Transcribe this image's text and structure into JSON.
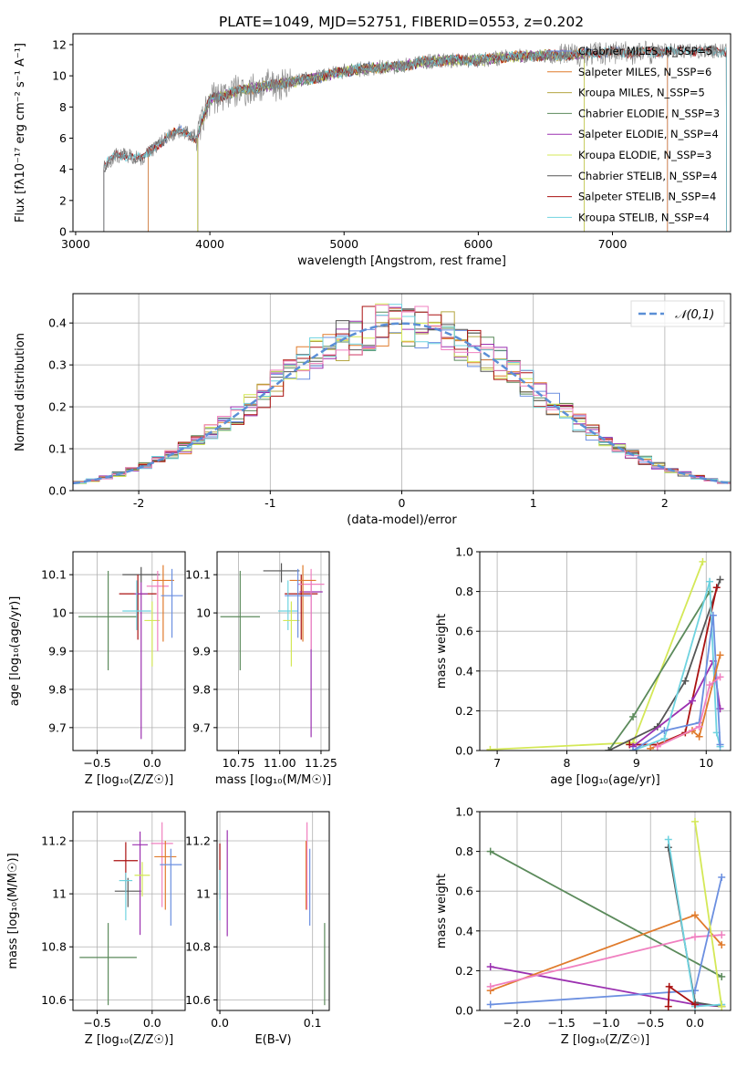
{
  "figure": {
    "title": "PLATE=1049, MJD=52751, FIBERID=0553, z=0.202"
  },
  "chart_data": [
    {
      "id": "spectrum",
      "type": "line",
      "xlabel": "wavelength [Angstrom, rest frame]",
      "ylabel": "Flux [fλ10⁻¹⁷ erg cm⁻² s⁻¹ A⁻¹]",
      "xlim": [
        2980,
        7880
      ],
      "ylim": [
        0,
        12.7
      ],
      "xticks": [
        3000,
        4000,
        5000,
        6000,
        7000
      ],
      "yticks": [
        0,
        2,
        4,
        6,
        8,
        10,
        12
      ],
      "grid": false,
      "legend_position": "top-right",
      "observed_envelope": {
        "x": [
          3210,
          3300,
          3400,
          3500,
          3600,
          3700,
          3800,
          3900,
          4000,
          4200,
          4400,
          4600,
          4800,
          5000,
          5200,
          5400,
          5600,
          5800,
          6000,
          6200,
          6400,
          6600,
          6800,
          7000,
          7200,
          7400,
          7600,
          7850
        ],
        "y": [
          4.2,
          4.9,
          4.9,
          4.7,
          5.5,
          6.2,
          6.5,
          6.0,
          8.5,
          9.0,
          9.3,
          9.6,
          9.9,
          10.3,
          10.5,
          10.6,
          10.9,
          11.0,
          11.0,
          11.2,
          11.3,
          11.3,
          11.4,
          11.5,
          11.5,
          11.6,
          11.6,
          11.6
        ]
      },
      "series": [
        {
          "name": "Chabrier MILES, N_SSP=5",
          "color": "#6b8fe0",
          "x_start": 3540,
          "x_end": 7410
        },
        {
          "name": "Salpeter MILES, N_SSP=6",
          "color": "#e07b2c",
          "x_start": 3540,
          "x_end": 7410
        },
        {
          "name": "Kroupa MILES, N_SSP=5",
          "color": "#b5a642",
          "x_start": 3910,
          "x_end": 6790
        },
        {
          "name": "Chabrier ELODIE, N_SSP=3",
          "color": "#5b8a5b",
          "x_start": 3910,
          "x_end": 6790
        },
        {
          "name": "Salpeter ELODIE, N_SSP=4",
          "color": "#9b30b0",
          "x_start": 3910,
          "x_end": 6790
        },
        {
          "name": "Kroupa ELODIE, N_SSP=3",
          "color": "#d4e857",
          "x_start": 3910,
          "x_end": 6790
        },
        {
          "name": "Chabrier STELIB, N_SSP=4",
          "color": "#555555",
          "x_start": 3210,
          "x_end": 7850
        },
        {
          "name": "Salpeter STELIB, N_SSP=4",
          "color": "#aa1111",
          "x_start": 3210,
          "x_end": 7850
        },
        {
          "name": "Kroupa STELIB, N_SSP=4",
          "color": "#6fd3e0",
          "x_start": 3210,
          "x_end": 7850
        }
      ]
    },
    {
      "id": "residuals",
      "type": "histogram",
      "xlabel": "(data-model)/error",
      "ylabel": "Normed distribution",
      "xlim": [
        -2.5,
        2.5
      ],
      "ylim": [
        0,
        0.47
      ],
      "xticks": [
        -2,
        -1,
        0,
        1,
        2
      ],
      "yticks": [
        0.0,
        0.1,
        0.2,
        0.3,
        0.4
      ],
      "grid": true,
      "legend_position": "top-right",
      "legend_label": "𝒩(0,1)",
      "normal_curve_color": "#5b8fd6",
      "bin_width": 0.1
    },
    {
      "id": "age-vs-z",
      "type": "errorbar",
      "xlabel": "Z [log₁₀(Z/Z☉)]",
      "ylabel": "age  [log₁₀(age/yr)]",
      "xlim": [
        -0.72,
        0.3
      ],
      "ylim": [
        9.64,
        10.16
      ],
      "xticks": [
        -0.5,
        0.0
      ],
      "xticklabels": [
        "−0.5",
        "0.0"
      ],
      "yticks": [
        9.7,
        9.8,
        9.9,
        10.0,
        10.1
      ],
      "grid": true,
      "points": [
        {
          "x": -0.4,
          "y": 9.99,
          "xerr": 0.27,
          "yerr_lo": 0.14,
          "yerr_hi": 0.12,
          "color": "#5b8a5b"
        },
        {
          "x": -0.1,
          "y": 10.1,
          "xerr": 0.17,
          "yerr_lo": 0.02,
          "yerr_hi": 0.02,
          "color": "#555555"
        },
        {
          "x": -0.13,
          "y": 10.05,
          "xerr": 0.17,
          "yerr_lo": 0.12,
          "yerr_hi": 0.05,
          "color": "#aa1111"
        },
        {
          "x": -0.1,
          "y": 10.05,
          "xerr": 0.06,
          "yerr_lo": 0.38,
          "yerr_hi": 0.03,
          "color": "#9b30b0"
        },
        {
          "x": -0.14,
          "y": 10.005,
          "xerr": 0.13,
          "yerr_lo": 0.05,
          "yerr_hi": 0.08,
          "color": "#6fd3e0"
        },
        {
          "x": 0.0,
          "y": 9.98,
          "xerr": 0.07,
          "yerr_lo": 0.12,
          "yerr_hi": 0.05,
          "color": "#d4e857"
        },
        {
          "x": 0.05,
          "y": 10.07,
          "xerr": 0.1,
          "yerr_lo": 0.17,
          "yerr_hi": 0.04,
          "color": "#f080c0"
        },
        {
          "x": 0.1,
          "y": 10.085,
          "xerr": 0.1,
          "yerr_lo": 0.16,
          "yerr_hi": 0.04,
          "color": "#e07b2c"
        },
        {
          "x": 0.18,
          "y": 10.045,
          "xerr": 0.1,
          "yerr_lo": 0.11,
          "yerr_hi": 0.07,
          "color": "#6b8fe0"
        }
      ]
    },
    {
      "id": "age-vs-mass",
      "type": "errorbar",
      "xlabel": "mass [log₁₀(M/M☉)]",
      "ylabel": "",
      "xlim": [
        10.62,
        11.3
      ],
      "ylim": [
        9.64,
        10.16
      ],
      "xticks": [
        10.75,
        11.0,
        11.25
      ],
      "xticklabels": [
        "10.75",
        "11.00",
        "11.25"
      ],
      "yticks": [
        9.7,
        9.8,
        9.9,
        10.0,
        10.1
      ],
      "grid": true,
      "points": [
        {
          "x": 10.76,
          "y": 9.99,
          "xerr": 0.12,
          "yerr_lo": 0.14,
          "yerr_hi": 0.12,
          "color": "#5b8a5b"
        },
        {
          "x": 11.01,
          "y": 10.11,
          "xerr": 0.11,
          "yerr_lo": 0.03,
          "yerr_hi": 0.02,
          "color": "#555555"
        },
        {
          "x": 11.13,
          "y": 10.05,
          "xerr": 0.1,
          "yerr_lo": 0.12,
          "yerr_hi": 0.05,
          "color": "#aa1111"
        },
        {
          "x": 11.19,
          "y": 10.055,
          "xerr": 0.07,
          "yerr_lo": 0.38,
          "yerr_hi": 0.03,
          "color": "#9b30b0"
        },
        {
          "x": 11.05,
          "y": 10.005,
          "xerr": 0.06,
          "yerr_lo": 0.05,
          "yerr_hi": 0.08,
          "color": "#6fd3e0"
        },
        {
          "x": 11.07,
          "y": 9.98,
          "xerr": 0.05,
          "yerr_lo": 0.12,
          "yerr_hi": 0.05,
          "color": "#d4e857"
        },
        {
          "x": 11.19,
          "y": 10.075,
          "xerr": 0.08,
          "yerr_lo": 0.17,
          "yerr_hi": 0.04,
          "color": "#f080c0"
        },
        {
          "x": 11.14,
          "y": 10.085,
          "xerr": 0.08,
          "yerr_lo": 0.16,
          "yerr_hi": 0.04,
          "color": "#e07b2c"
        },
        {
          "x": 11.11,
          "y": 10.045,
          "xerr": 0.08,
          "yerr_lo": 0.11,
          "yerr_hi": 0.07,
          "color": "#6b8fe0"
        }
      ]
    },
    {
      "id": "weight-vs-age",
      "type": "line",
      "xlabel": "age  [log₁₀(age/yr)]",
      "ylabel": "mass weight",
      "xlim": [
        6.75,
        10.35
      ],
      "ylim": [
        0.0,
        1.0
      ],
      "xticks": [
        7,
        8,
        9,
        10
      ],
      "yticks": [
        0.0,
        0.2,
        0.4,
        0.6,
        0.8,
        1.0
      ],
      "grid": true,
      "series": [
        {
          "color": "#d4e857",
          "x": [
            6.9,
            8.95,
            9.95
          ],
          "y": [
            0.005,
            0.04,
            0.95
          ]
        },
        {
          "color": "#5b8a5b",
          "x": [
            8.6,
            8.95,
            10.05
          ],
          "y": [
            0.0,
            0.17,
            0.8
          ]
        },
        {
          "color": "#555555",
          "x": [
            8.6,
            9.3,
            9.7,
            10.2
          ],
          "y": [
            0.0,
            0.12,
            0.35,
            0.86
          ]
        },
        {
          "color": "#aa1111",
          "x": [
            8.9,
            9.3,
            9.7,
            10.15
          ],
          "y": [
            0.03,
            0.03,
            0.09,
            0.82
          ]
        },
        {
          "color": "#9b30b0",
          "x": [
            8.95,
            9.8,
            10.1,
            10.2
          ],
          "y": [
            0.02,
            0.25,
            0.45,
            0.21
          ]
        },
        {
          "color": "#6fd3e0",
          "x": [
            8.95,
            9.4,
            10.05,
            10.15,
            10.2
          ],
          "y": [
            0.0,
            0.06,
            0.85,
            0.09,
            0.02
          ]
        },
        {
          "color": "#6b8fe0",
          "x": [
            8.95,
            9.4,
            9.9,
            10.1,
            10.2
          ],
          "y": [
            0.0,
            0.1,
            0.14,
            0.68,
            0.03
          ]
        },
        {
          "color": "#e07b2c",
          "x": [
            9.2,
            9.8,
            9.9,
            10.2
          ],
          "y": [
            0.01,
            0.1,
            0.07,
            0.48
          ]
        },
        {
          "color": "#f080c0",
          "x": [
            9.3,
            9.9,
            10.05,
            10.2
          ],
          "y": [
            0.02,
            0.12,
            0.33,
            0.37
          ]
        }
      ]
    },
    {
      "id": "mass-vs-z",
      "type": "errorbar",
      "xlabel": "Z [log₁₀(Z/Z☉)]",
      "ylabel": "mass [log₁₀(M/M☉)]",
      "xlim": [
        -0.72,
        0.3
      ],
      "ylim": [
        10.56,
        11.31
      ],
      "xticks": [
        -0.5,
        0.0
      ],
      "xticklabels": [
        "−0.5",
        "0.0"
      ],
      "yticks": [
        10.6,
        10.8,
        11.0,
        11.2
      ],
      "grid": true,
      "points": [
        {
          "x": -0.4,
          "y": 10.76,
          "xerr": 0.26,
          "yerr_lo": 0.18,
          "yerr_hi": 0.13,
          "color": "#5b8a5b"
        },
        {
          "x": -0.22,
          "y": 11.01,
          "xerr": 0.12,
          "yerr_lo": 0.06,
          "yerr_hi": 0.05,
          "color": "#555555"
        },
        {
          "x": -0.24,
          "y": 11.125,
          "xerr": 0.11,
          "yerr_lo": 0.12,
          "yerr_hi": 0.07,
          "color": "#aa1111"
        },
        {
          "x": -0.11,
          "y": 11.185,
          "xerr": 0.07,
          "yerr_lo": 0.34,
          "yerr_hi": 0.05,
          "color": "#9b30b0"
        },
        {
          "x": -0.24,
          "y": 11.05,
          "xerr": 0.06,
          "yerr_lo": 0.15,
          "yerr_hi": 0.03,
          "color": "#6fd3e0"
        },
        {
          "x": -0.09,
          "y": 11.07,
          "xerr": 0.07,
          "yerr_lo": 0.08,
          "yerr_hi": 0.05,
          "color": "#d4e857"
        },
        {
          "x": 0.09,
          "y": 11.19,
          "xerr": 0.1,
          "yerr_lo": 0.24,
          "yerr_hi": 0.08,
          "color": "#f080c0"
        },
        {
          "x": 0.12,
          "y": 11.14,
          "xerr": 0.1,
          "yerr_lo": 0.2,
          "yerr_hi": 0.06,
          "color": "#e07b2c"
        },
        {
          "x": 0.17,
          "y": 11.11,
          "xerr": 0.1,
          "yerr_lo": 0.23,
          "yerr_hi": 0.06,
          "color": "#6b8fe0"
        }
      ]
    },
    {
      "id": "mass-vs-ebv",
      "type": "errorbar",
      "xlabel": "E(B-V)",
      "ylabel": "",
      "xlim": [
        -0.003,
        0.118
      ],
      "ylim": [
        10.56,
        11.31
      ],
      "xticks": [
        0.0,
        0.1
      ],
      "xticklabels": [
        "0.0",
        "0.1"
      ],
      "yticks": [
        10.6,
        10.8,
        11.0,
        11.2
      ],
      "grid": true,
      "points": [
        {
          "x": 0.0,
          "y": 11.12,
          "yerr_lo": 0.14,
          "yerr_hi": 0.07,
          "color": "#aa1111"
        },
        {
          "x": 0.0,
          "y": 11.05,
          "yerr_lo": 0.15,
          "yerr_hi": 0.04,
          "color": "#6fd3e0"
        },
        {
          "x": 0.008,
          "y": 11.19,
          "yerr_lo": 0.35,
          "yerr_hi": 0.05,
          "color": "#9b30b0"
        },
        {
          "x": 0.093,
          "y": 11.14,
          "yerr_lo": 0.2,
          "yerr_hi": 0.06,
          "color": "#e07b2c"
        },
        {
          "x": 0.094,
          "y": 11.19,
          "yerr_lo": 0.25,
          "yerr_hi": 0.08,
          "color": "#f080c0"
        },
        {
          "x": 0.097,
          "y": 11.11,
          "yerr_lo": 0.23,
          "yerr_hi": 0.06,
          "color": "#6b8fe0"
        },
        {
          "x": 0.113,
          "y": 10.76,
          "yerr_lo": 0.18,
          "yerr_hi": 0.13,
          "color": "#5b8a5b"
        }
      ]
    },
    {
      "id": "weight-vs-z",
      "type": "line",
      "xlabel": "Z [log₁₀(Z/Z☉)]",
      "ylabel": "mass weight",
      "xlim": [
        -2.42,
        0.4
      ],
      "ylim": [
        0.0,
        1.0
      ],
      "xticks": [
        -2.0,
        -1.5,
        -1.0,
        -0.5,
        0.0
      ],
      "xticklabels": [
        "−2.0",
        "−1.5",
        "−1.0",
        "−0.5",
        "0.0"
      ],
      "yticks": [
        0.0,
        0.2,
        0.4,
        0.6,
        0.8,
        1.0
      ],
      "grid": true,
      "series": [
        {
          "color": "#5b8a5b",
          "x": [
            -2.3,
            0.3
          ],
          "y": [
            0.8,
            0.17
          ]
        },
        {
          "color": "#9b30b0",
          "x": [
            -2.3,
            0.0,
            0.3
          ],
          "y": [
            0.22,
            0.03,
            0.02
          ]
        },
        {
          "color": "#e07b2c",
          "x": [
            -2.3,
            0.0,
            0.3
          ],
          "y": [
            0.1,
            0.48,
            0.33
          ]
        },
        {
          "color": "#f080c0",
          "x": [
            -2.3,
            0.0,
            0.3
          ],
          "y": [
            0.12,
            0.37,
            0.38
          ]
        },
        {
          "color": "#6b8fe0",
          "x": [
            -2.3,
            0.0,
            0.3
          ],
          "y": [
            0.03,
            0.1,
            0.67
          ]
        },
        {
          "color": "#555555",
          "x": [
            -0.3,
            0.0,
            0.3
          ],
          "y": [
            0.82,
            0.04,
            0.02
          ]
        },
        {
          "color": "#6fd3e0",
          "x": [
            -0.3,
            0.0,
            0.3
          ],
          "y": [
            0.86,
            0.02,
            0.03
          ]
        },
        {
          "color": "#d4e857",
          "x": [
            0.0,
            0.3
          ],
          "y": [
            0.95,
            0.02
          ]
        },
        {
          "color": "#aa1111",
          "x": [
            -0.3,
            -0.29,
            0.0
          ],
          "y": [
            0.02,
            0.12,
            0.03
          ]
        }
      ]
    }
  ]
}
